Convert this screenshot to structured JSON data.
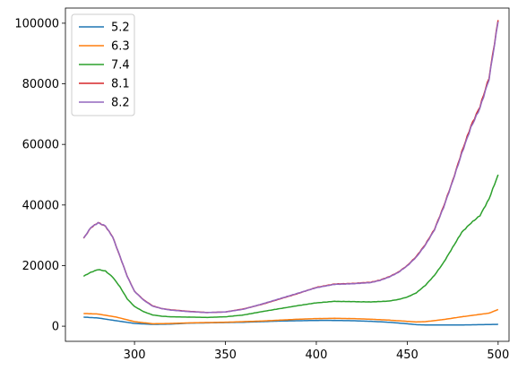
{
  "chart_data": {
    "type": "line",
    "title": "",
    "xlabel": "",
    "ylabel": "",
    "xlim": [
      262,
      506
    ],
    "ylim": [
      -5000,
      105000
    ],
    "xticks": [
      300,
      350,
      400,
      450,
      500
    ],
    "yticks": [
      0,
      20000,
      40000,
      60000,
      80000,
      100000
    ],
    "xtick_labels": [
      "300",
      "350",
      "400",
      "450",
      "500"
    ],
    "ytick_labels": [
      "0",
      "20000",
      "40000",
      "60000",
      "80000",
      "100000"
    ],
    "grid": false,
    "legend_position": "top-left",
    "series": [
      {
        "name": "5.2",
        "color": "#1f77b4",
        "points": [
          [
            272,
            3000
          ],
          [
            280,
            2700
          ],
          [
            290,
            1800
          ],
          [
            300,
            900
          ],
          [
            310,
            600
          ],
          [
            320,
            700
          ],
          [
            330,
            1000
          ],
          [
            340,
            1100
          ],
          [
            350,
            1200
          ],
          [
            360,
            1300
          ],
          [
            370,
            1500
          ],
          [
            380,
            1700
          ],
          [
            390,
            1800
          ],
          [
            400,
            1900
          ],
          [
            410,
            1900
          ],
          [
            420,
            1800
          ],
          [
            430,
            1600
          ],
          [
            440,
            1300
          ],
          [
            450,
            800
          ],
          [
            455,
            500
          ],
          [
            460,
            400
          ],
          [
            470,
            400
          ],
          [
            480,
            400
          ],
          [
            490,
            500
          ],
          [
            500,
            600
          ]
        ]
      },
      {
        "name": "6.3",
        "color": "#ff7f0e",
        "points": [
          [
            272,
            4200
          ],
          [
            280,
            4000
          ],
          [
            290,
            3000
          ],
          [
            300,
            1500
          ],
          [
            310,
            800
          ],
          [
            320,
            900
          ],
          [
            330,
            1100
          ],
          [
            340,
            1200
          ],
          [
            350,
            1300
          ],
          [
            360,
            1500
          ],
          [
            370,
            1700
          ],
          [
            380,
            2000
          ],
          [
            390,
            2300
          ],
          [
            400,
            2500
          ],
          [
            410,
            2600
          ],
          [
            420,
            2500
          ],
          [
            430,
            2300
          ],
          [
            440,
            2000
          ],
          [
            450,
            1600
          ],
          [
            455,
            1400
          ],
          [
            460,
            1500
          ],
          [
            470,
            2200
          ],
          [
            480,
            3100
          ],
          [
            490,
            3900
          ],
          [
            495,
            4300
          ],
          [
            500,
            5500
          ]
        ]
      },
      {
        "name": "7.4",
        "color": "#2ca02c",
        "points": [
          [
            272,
            16500
          ],
          [
            276,
            17800
          ],
          [
            280,
            18700
          ],
          [
            284,
            18200
          ],
          [
            288,
            16200
          ],
          [
            292,
            13000
          ],
          [
            296,
            9000
          ],
          [
            300,
            6500
          ],
          [
            305,
            4800
          ],
          [
            310,
            3700
          ],
          [
            315,
            3300
          ],
          [
            320,
            3100
          ],
          [
            330,
            3000
          ],
          [
            340,
            2900
          ],
          [
            350,
            3100
          ],
          [
            360,
            3700
          ],
          [
            370,
            4800
          ],
          [
            380,
            5800
          ],
          [
            390,
            6800
          ],
          [
            400,
            7700
          ],
          [
            410,
            8200
          ],
          [
            420,
            8100
          ],
          [
            430,
            8000
          ],
          [
            440,
            8300
          ],
          [
            445,
            8800
          ],
          [
            450,
            9600
          ],
          [
            455,
            11000
          ],
          [
            460,
            13500
          ],
          [
            465,
            16800
          ],
          [
            470,
            21000
          ],
          [
            475,
            26000
          ],
          [
            480,
            31000
          ],
          [
            485,
            34000
          ],
          [
            490,
            36500
          ],
          [
            495,
            42000
          ],
          [
            500,
            50000
          ]
        ]
      },
      {
        "name": "8.1",
        "color": "#d62728",
        "points": [
          [
            272,
            29000
          ],
          [
            276,
            32500
          ],
          [
            280,
            34200
          ],
          [
            284,
            33000
          ],
          [
            288,
            29500
          ],
          [
            292,
            23000
          ],
          [
            296,
            16500
          ],
          [
            300,
            11500
          ],
          [
            305,
            8700
          ],
          [
            310,
            6700
          ],
          [
            315,
            5800
          ],
          [
            320,
            5400
          ],
          [
            330,
            4900
          ],
          [
            340,
            4500
          ],
          [
            350,
            4700
          ],
          [
            360,
            5700
          ],
          [
            370,
            7200
          ],
          [
            380,
            9000
          ],
          [
            390,
            10800
          ],
          [
            400,
            12800
          ],
          [
            410,
            13900
          ],
          [
            420,
            14100
          ],
          [
            430,
            14500
          ],
          [
            435,
            15200
          ],
          [
            440,
            16300
          ],
          [
            445,
            17800
          ],
          [
            450,
            20000
          ],
          [
            455,
            23000
          ],
          [
            460,
            27000
          ],
          [
            465,
            32000
          ],
          [
            470,
            39500
          ],
          [
            475,
            48000
          ],
          [
            480,
            57500
          ],
          [
            485,
            66000
          ],
          [
            490,
            72500
          ],
          [
            495,
            82000
          ],
          [
            500,
            101000
          ]
        ]
      },
      {
        "name": "8.2",
        "color": "#9467bd",
        "points": [
          [
            272,
            29000
          ],
          [
            276,
            32600
          ],
          [
            280,
            34100
          ],
          [
            284,
            33100
          ],
          [
            288,
            29400
          ],
          [
            292,
            23100
          ],
          [
            296,
            16400
          ],
          [
            300,
            11500
          ],
          [
            305,
            8600
          ],
          [
            310,
            6600
          ],
          [
            315,
            5800
          ],
          [
            320,
            5300
          ],
          [
            330,
            4800
          ],
          [
            340,
            4500
          ],
          [
            350,
            4700
          ],
          [
            360,
            5600
          ],
          [
            370,
            7300
          ],
          [
            380,
            9100
          ],
          [
            390,
            10900
          ],
          [
            400,
            12700
          ],
          [
            410,
            13800
          ],
          [
            420,
            14000
          ],
          [
            430,
            14400
          ],
          [
            435,
            15100
          ],
          [
            440,
            16200
          ],
          [
            445,
            17700
          ],
          [
            450,
            19900
          ],
          [
            455,
            22800
          ],
          [
            460,
            26800
          ],
          [
            465,
            31800
          ],
          [
            470,
            39200
          ],
          [
            475,
            47800
          ],
          [
            480,
            57000
          ],
          [
            485,
            65500
          ],
          [
            490,
            72000
          ],
          [
            495,
            81500
          ],
          [
            500,
            100500
          ]
        ]
      }
    ]
  }
}
